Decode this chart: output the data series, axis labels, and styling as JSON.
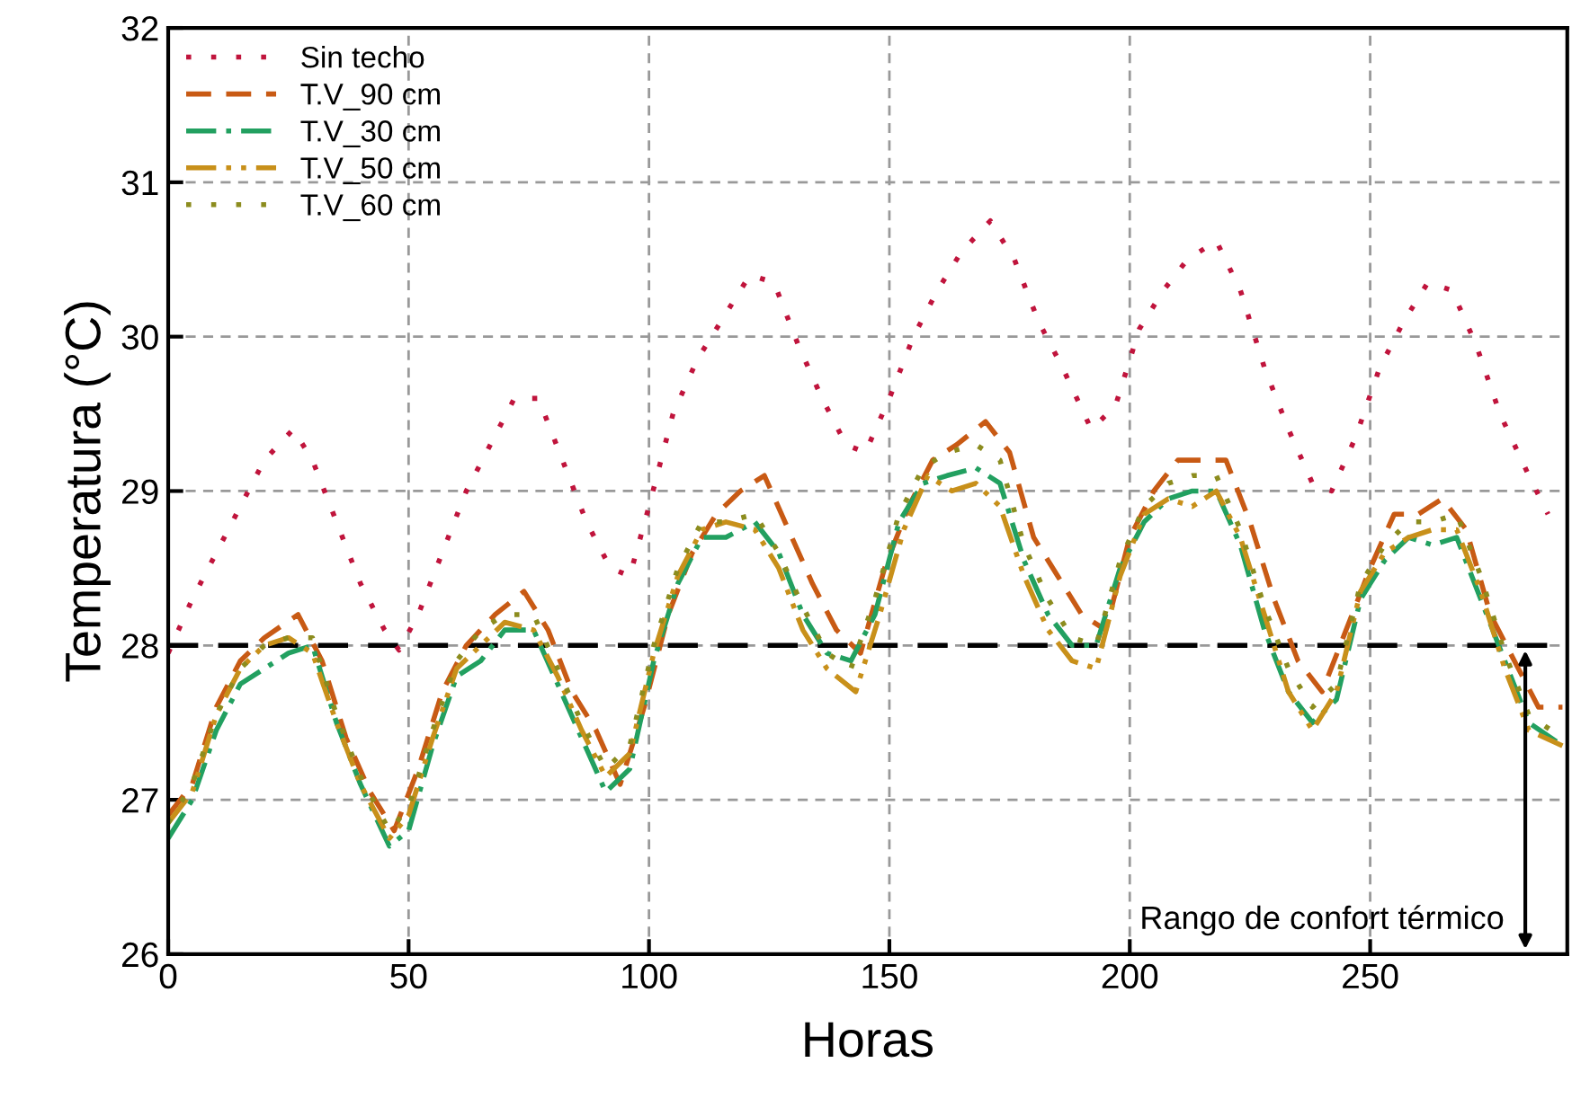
{
  "chart_data": {
    "type": "line",
    "xlabel": "Horas",
    "ylabel": "Temperatura (°C)",
    "xlim": [
      0,
      291
    ],
    "ylim": [
      26,
      32
    ],
    "xticks": [
      0,
      50,
      100,
      150,
      200,
      250
    ],
    "yticks": [
      26,
      27,
      28,
      29,
      30,
      31,
      32
    ],
    "grid": true,
    "legend": "top left",
    "marker": "none",
    "ref_lines": [
      {
        "axis": "y",
        "value": 28,
        "label": "Rango de confort térmico",
        "color": "#000000",
        "line_style": "dashed"
      }
    ],
    "series": [
      {
        "name": "Sin techo",
        "color": "#c0143c",
        "line_style": "dotted",
        "x": [
          0,
          5,
          10,
          15,
          20,
          26,
          30,
          35,
          40,
          45,
          48,
          52,
          57,
          62,
          67,
          72,
          77,
          82,
          87,
          92,
          96,
          100,
          105,
          110,
          115,
          121,
          126,
          131,
          136,
          141,
          145,
          150,
          155,
          160,
          165,
          171,
          176,
          181,
          186,
          192,
          197,
          202,
          207,
          212,
          218,
          223,
          228,
          233,
          238,
          242,
          247,
          252,
          257,
          262,
          267,
          272,
          277,
          283,
          287
        ],
        "values": [
          27.95,
          28.3,
          28.6,
          28.9,
          29.2,
          29.4,
          29.2,
          28.8,
          28.4,
          28.1,
          27.97,
          28.2,
          28.6,
          29.0,
          29.3,
          29.6,
          29.6,
          29.2,
          28.8,
          28.5,
          28.45,
          28.9,
          29.5,
          29.85,
          30.1,
          30.4,
          30.35,
          29.95,
          29.6,
          29.3,
          29.25,
          29.6,
          30.0,
          30.3,
          30.55,
          30.75,
          30.5,
          30.1,
          29.8,
          29.4,
          29.55,
          30.05,
          30.3,
          30.5,
          30.62,
          30.3,
          29.8,
          29.4,
          29.05,
          29.0,
          29.35,
          29.8,
          30.1,
          30.35,
          30.3,
          29.95,
          29.5,
          29.1,
          28.85
        ]
      },
      {
        "name": "T.V_90 cm",
        "color": "#c85a14",
        "line_style": "dashed",
        "x": [
          0,
          5,
          10,
          15,
          20,
          27,
          32,
          37,
          42,
          47,
          52,
          57,
          62,
          68,
          74,
          79,
          84,
          89,
          94,
          99,
          104,
          109,
          114,
          119,
          124,
          129,
          134,
          139,
          144,
          149,
          154,
          159,
          164,
          170,
          175,
          180,
          185,
          190,
          195,
          200,
          205,
          210,
          215,
          220,
          225,
          230,
          235,
          240,
          245,
          250,
          255,
          260,
          265,
          270,
          275,
          280,
          285,
          290
        ],
        "values": [
          26.9,
          27.1,
          27.6,
          27.9,
          28.05,
          28.2,
          27.9,
          27.4,
          27.05,
          26.8,
          27.2,
          27.7,
          28.0,
          28.2,
          28.35,
          28.1,
          27.7,
          27.45,
          27.1,
          27.6,
          28.2,
          28.6,
          28.85,
          29.0,
          29.1,
          28.75,
          28.4,
          28.1,
          27.95,
          28.5,
          28.9,
          29.2,
          29.3,
          29.45,
          29.25,
          28.7,
          28.45,
          28.2,
          28.1,
          28.7,
          29.0,
          29.2,
          29.2,
          29.2,
          28.8,
          28.3,
          27.9,
          27.7,
          28.1,
          28.5,
          28.85,
          28.85,
          28.95,
          28.75,
          28.2,
          27.9,
          27.6,
          27.6
        ]
      },
      {
        "name": "T.V_30 cm",
        "color": "#22a060",
        "line_style": "dashdot",
        "x": [
          0,
          5,
          10,
          15,
          20,
          25,
          30,
          35,
          40,
          46,
          50,
          55,
          60,
          65,
          70,
          76,
          81,
          86,
          91,
          96,
          101,
          106,
          111,
          116,
          122,
          127,
          132,
          137,
          142,
          147,
          152,
          157,
          162,
          168,
          173,
          178,
          183,
          188,
          193,
          198,
          203,
          208,
          213,
          218,
          223,
          228,
          233,
          238,
          243,
          248,
          253,
          258,
          263,
          268,
          273,
          278,
          283,
          290
        ],
        "values": [
          26.75,
          27.0,
          27.45,
          27.75,
          27.85,
          27.95,
          28.0,
          27.5,
          27.1,
          26.7,
          26.8,
          27.35,
          27.8,
          27.9,
          28.1,
          28.1,
          27.75,
          27.4,
          27.05,
          27.2,
          27.9,
          28.4,
          28.7,
          28.7,
          28.8,
          28.6,
          28.2,
          27.95,
          27.9,
          28.2,
          28.8,
          29.05,
          29.1,
          29.15,
          29.05,
          28.55,
          28.2,
          28.0,
          28.0,
          28.5,
          28.8,
          28.95,
          29.0,
          29.0,
          28.65,
          28.1,
          27.7,
          27.5,
          27.65,
          28.3,
          28.55,
          28.7,
          28.65,
          28.7,
          28.3,
          27.9,
          27.5,
          27.35
        ]
      },
      {
        "name": "T.V_50 cm",
        "color": "#c8901a",
        "line_style": "dashdotdot",
        "x": [
          0,
          5,
          10,
          15,
          20,
          25,
          30,
          35,
          40,
          46,
          50,
          55,
          60,
          65,
          70,
          76,
          81,
          86,
          91,
          96,
          101,
          106,
          111,
          116,
          122,
          127,
          132,
          137,
          143,
          148,
          153,
          158,
          163,
          168,
          173,
          178,
          183,
          188,
          193,
          198,
          203,
          208,
          213,
          218,
          223,
          228,
          233,
          238,
          243,
          248,
          253,
          258,
          263,
          268,
          273,
          278,
          283,
          290
        ],
        "values": [
          26.85,
          27.05,
          27.55,
          27.85,
          28.0,
          28.05,
          27.95,
          27.5,
          27.1,
          26.75,
          26.9,
          27.4,
          27.85,
          28.0,
          28.15,
          28.1,
          27.8,
          27.45,
          27.15,
          27.3,
          27.95,
          28.45,
          28.75,
          28.8,
          28.75,
          28.5,
          28.1,
          27.85,
          27.7,
          28.2,
          28.75,
          29.1,
          29.0,
          29.05,
          28.9,
          28.45,
          28.1,
          27.9,
          27.85,
          28.45,
          28.85,
          28.95,
          28.9,
          29.0,
          28.7,
          28.2,
          27.7,
          27.45,
          27.7,
          28.35,
          28.6,
          28.7,
          28.75,
          28.75,
          28.35,
          27.85,
          27.45,
          27.35
        ]
      },
      {
        "name": "T.V_60 cm",
        "color": "#8c8c1e",
        "line_style": "dotted",
        "x": [
          0,
          5,
          10,
          15,
          20,
          25,
          30,
          35,
          40,
          46,
          50,
          55,
          60,
          65,
          70,
          76,
          81,
          86,
          91,
          96,
          101,
          106,
          111,
          116,
          122,
          127,
          132,
          137,
          142,
          147,
          152,
          157,
          162,
          168,
          173,
          178,
          183,
          188,
          193,
          198,
          203,
          208,
          213,
          218,
          223,
          228,
          233,
          238,
          243,
          248,
          253,
          258,
          263,
          268,
          273,
          278,
          283,
          290
        ],
        "values": [
          26.85,
          27.1,
          27.55,
          27.85,
          28.0,
          28.05,
          28.05,
          27.55,
          27.15,
          26.8,
          26.95,
          27.45,
          27.9,
          28.1,
          28.2,
          28.2,
          27.85,
          27.5,
          27.2,
          27.35,
          28.0,
          28.5,
          28.8,
          28.8,
          28.85,
          28.6,
          28.25,
          27.95,
          27.85,
          28.3,
          28.85,
          29.15,
          29.25,
          29.3,
          29.2,
          28.65,
          28.3,
          28.05,
          28.0,
          28.55,
          28.9,
          29.05,
          29.1,
          29.1,
          28.75,
          28.25,
          27.85,
          27.6,
          27.75,
          28.4,
          28.65,
          28.8,
          28.8,
          28.85,
          28.45,
          27.95,
          27.55,
          27.4
        ]
      }
    ]
  }
}
